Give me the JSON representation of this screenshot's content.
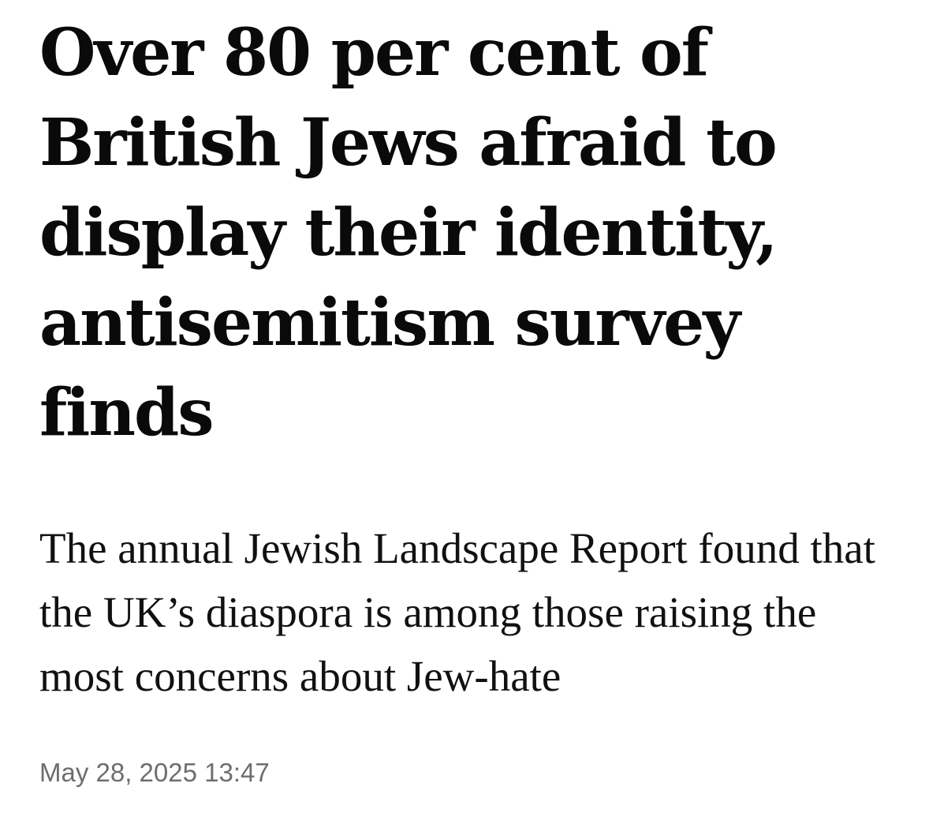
{
  "article": {
    "headline": "Over 80 per cent of British Jews afraid to display their identity, antisemitism survey finds",
    "standfirst": "The annual Jewish Landscape Report found that the UK’s diaspora is among those raising the most concerns about Jew-hate",
    "timestamp": "May 28, 2025 13:47"
  },
  "colors": {
    "background": "#ffffff",
    "headline_text": "#0a0a0a",
    "body_text": "#111111",
    "timestamp_text": "#6e6e6e"
  }
}
